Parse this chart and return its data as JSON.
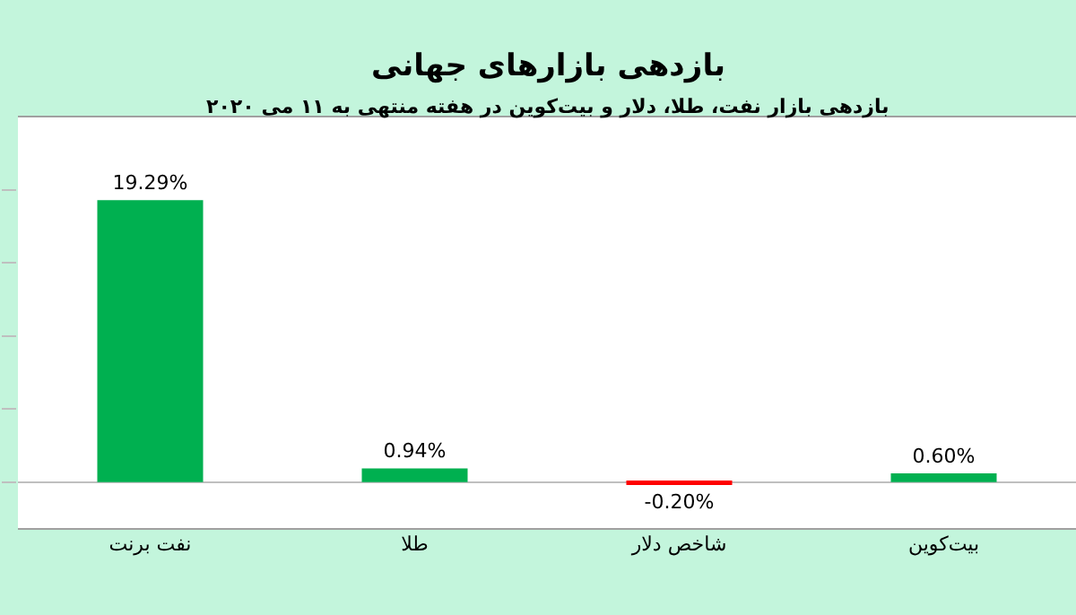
{
  "chart_data": {
    "type": "bar",
    "title": "بازدهی بازارهای جهانی",
    "subtitle": "بازدهی بازار نفت، طلا، دلار و بیت‌کوین در هفته منتهی به ۱۱ می ۲۰۲۰",
    "categories": [
      "نفت برنت",
      "طلا",
      "شاخص دلار",
      "بیت‌کوین"
    ],
    "values": [
      19.29,
      0.94,
      -0.2,
      0.6
    ],
    "colors": [
      "#00b050",
      "#00b050",
      "#ff0000",
      "#00b050"
    ],
    "value_labels": [
      "19.29%",
      "0.94%",
      "-0.20%",
      "0.60%"
    ],
    "ylim": [
      -3.2,
      25.0
    ],
    "yticks": [
      {
        "value": 0,
        "label": null
      },
      {
        "value": 5,
        "label": null
      },
      {
        "value": 10,
        "label": null
      },
      {
        "value": 15,
        "label": null
      },
      {
        "value": 20,
        "label": null
      }
    ],
    "tick_labels": "x",
    "grid": false,
    "legend": false
  }
}
